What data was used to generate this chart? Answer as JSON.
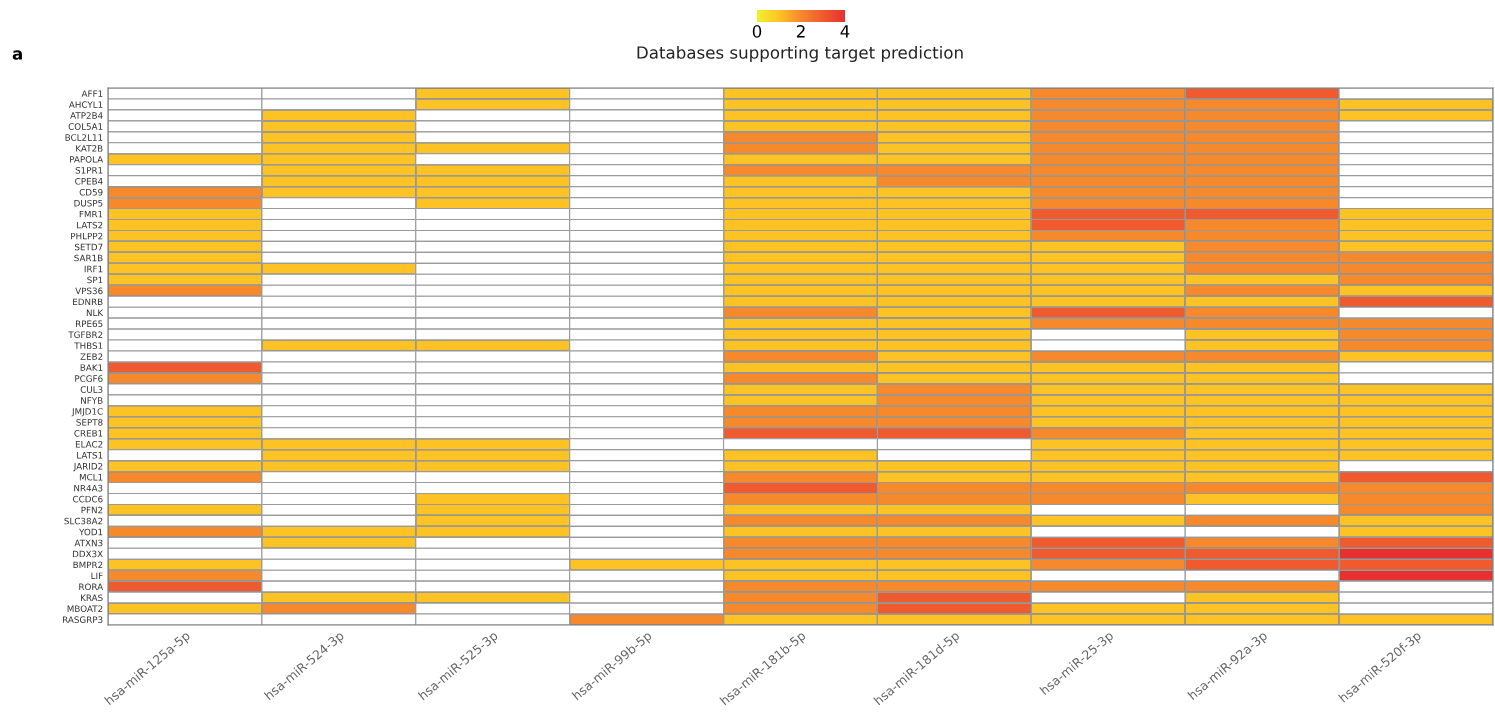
{
  "chart_data": {
    "type": "heatmap",
    "clabel": "Databases supporting target prediction",
    "annotations": [
      "a"
    ],
    "categories": [
      "hsa-miR-125a-5p",
      "hsa-miR-524-3p",
      "hsa-miR-525-3p",
      "hsa-miR-99b-5p",
      "hsa-miR-181b-5p",
      "hsa-miR-181d-5p",
      "hsa-miR-25-3p",
      "hsa-miR-92a-3p",
      "hsa-miR-520f-3p"
    ],
    "y_categories": [
      "AFF1",
      "AHCYL1",
      "ATP2B4",
      "COL5A1",
      "BCL2L11",
      "KAT2B",
      "PAPOLA",
      "S1PR1",
      "CPEB4",
      "CD59",
      "DUSP5",
      "FMR1",
      "LATS2",
      "PHLPP2",
      "SETD7",
      "SAR1B",
      "IRF1",
      "SP1",
      "VPS36",
      "EDNRB",
      "NLK",
      "RPE65",
      "TGFBR2",
      "THBS1",
      "ZEB2",
      "BAK1",
      "PCGF6",
      "CUL3",
      "NFYB",
      "JMJD1C",
      "SEPT8",
      "CREB1",
      "ELAC2",
      "LATS1",
      "JARID2",
      "MCL1",
      "NR4A3",
      "CCDC6",
      "PFN2",
      "SLC38A2",
      "YOD1",
      "ATXN3",
      "DDX3X",
      "BMPR2",
      "LIF",
      "RORA",
      "KRAS",
      "MBOAT2",
      "RASGRP3"
    ],
    "cells": [
      [
        null,
        null,
        1,
        null,
        1,
        1,
        2,
        3,
        null
      ],
      [
        null,
        null,
        1,
        null,
        1,
        1,
        2,
        2,
        1
      ],
      [
        null,
        1,
        null,
        null,
        1,
        1,
        2,
        2,
        1
      ],
      [
        null,
        1,
        null,
        null,
        1,
        1,
        2,
        2,
        null
      ],
      [
        null,
        1,
        null,
        null,
        2,
        1,
        2,
        2,
        null
      ],
      [
        null,
        1,
        1,
        null,
        2,
        1,
        2,
        2,
        null
      ],
      [
        1,
        1,
        null,
        null,
        1,
        1,
        2,
        2,
        null
      ],
      [
        null,
        1,
        1,
        null,
        2,
        2,
        2,
        2,
        null
      ],
      [
        null,
        1,
        1,
        null,
        1,
        2,
        2,
        2,
        null
      ],
      [
        2,
        1,
        1,
        null,
        1,
        1,
        2,
        2,
        null
      ],
      [
        2,
        null,
        1,
        null,
        1,
        1,
        2,
        2,
        null
      ],
      [
        1,
        null,
        null,
        null,
        1,
        1,
        3,
        3,
        1
      ],
      [
        1,
        null,
        null,
        null,
        1,
        1,
        3,
        2,
        1
      ],
      [
        1,
        null,
        null,
        null,
        1,
        1,
        2,
        2,
        1
      ],
      [
        1,
        null,
        null,
        null,
        1,
        1,
        1,
        2,
        1
      ],
      [
        1,
        null,
        null,
        null,
        1,
        1,
        1,
        2,
        2
      ],
      [
        1,
        1,
        null,
        null,
        1,
        1,
        1,
        2,
        2
      ],
      [
        1,
        null,
        null,
        null,
        1,
        1,
        1,
        1,
        2
      ],
      [
        2,
        null,
        null,
        null,
        1,
        1,
        1,
        2,
        1
      ],
      [
        null,
        null,
        null,
        null,
        1,
        1,
        1,
        1,
        3
      ],
      [
        null,
        null,
        null,
        null,
        2,
        1,
        3,
        2,
        null
      ],
      [
        null,
        null,
        null,
        null,
        1,
        1,
        2,
        2,
        2
      ],
      [
        null,
        null,
        null,
        null,
        1,
        1,
        null,
        1,
        2
      ],
      [
        null,
        1,
        1,
        null,
        1,
        1,
        null,
        1,
        2
      ],
      [
        null,
        null,
        null,
        null,
        2,
        1,
        2,
        2,
        1
      ],
      [
        3,
        null,
        null,
        null,
        1,
        1,
        1,
        1,
        null
      ],
      [
        2,
        null,
        null,
        null,
        2,
        1,
        1,
        1,
        null
      ],
      [
        null,
        null,
        null,
        null,
        1,
        2,
        1,
        1,
        1
      ],
      [
        null,
        null,
        null,
        null,
        1,
        2,
        1,
        1,
        1
      ],
      [
        1,
        null,
        null,
        null,
        2,
        2,
        1,
        1,
        1
      ],
      [
        1,
        null,
        null,
        null,
        2,
        2,
        1,
        1,
        1
      ],
      [
        1,
        null,
        null,
        null,
        3,
        3,
        2,
        1,
        1
      ],
      [
        1,
        1,
        1,
        null,
        null,
        null,
        1,
        1,
        1
      ],
      [
        null,
        1,
        1,
        null,
        1,
        null,
        1,
        1,
        1
      ],
      [
        1,
        1,
        1,
        null,
        1,
        1,
        1,
        1,
        null
      ],
      [
        2,
        null,
        null,
        null,
        2,
        1,
        1,
        1,
        3
      ],
      [
        null,
        null,
        null,
        null,
        3,
        2,
        2,
        2,
        2
      ],
      [
        null,
        null,
        1,
        null,
        2,
        2,
        2,
        1,
        2
      ],
      [
        1,
        null,
        1,
        null,
        1,
        1,
        null,
        null,
        2
      ],
      [
        null,
        null,
        1,
        null,
        2,
        2,
        1,
        2,
        1
      ],
      [
        2,
        1,
        1,
        null,
        1,
        1,
        null,
        null,
        1
      ],
      [
        null,
        1,
        null,
        null,
        2,
        2,
        3,
        2,
        3
      ],
      [
        null,
        null,
        null,
        null,
        2,
        2,
        3,
        3,
        4
      ],
      [
        1,
        null,
        null,
        1,
        1,
        1,
        2,
        3,
        3
      ],
      [
        2,
        null,
        null,
        null,
        1,
        1,
        null,
        null,
        4
      ],
      [
        3,
        null,
        null,
        null,
        2,
        2,
        2,
        2,
        null
      ],
      [
        null,
        1,
        1,
        null,
        2,
        3,
        null,
        1,
        null
      ],
      [
        1,
        2,
        null,
        null,
        2,
        3,
        1,
        1,
        null
      ],
      [
        null,
        null,
        null,
        2,
        1,
        1,
        1,
        1,
        1
      ]
    ],
    "colors": [
      "#f3f02a",
      "#fdc325",
      "#f5892b",
      "#ef5a2e",
      "#e8312e"
    ],
    "clim": [
      0,
      4
    ],
    "cticks": [
      0,
      2,
      4
    ]
  }
}
